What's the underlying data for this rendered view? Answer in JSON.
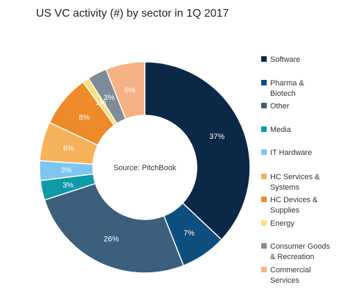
{
  "chart_data": {
    "type": "pie",
    "title": "US VC activity (#) by sector in 1Q 2017",
    "center_label": "Source: PitchBook",
    "slices": [
      {
        "name": "Software",
        "legend_lines": [
          "Software"
        ],
        "value": 37,
        "label": "37%",
        "color": "#0b2847"
      },
      {
        "name": "Pharma & Biotech",
        "legend_lines": [
          "Pharma &",
          "Biotech"
        ],
        "value": 7,
        "label": "7%",
        "color": "#0d4e7e"
      },
      {
        "name": "Other",
        "legend_lines": [
          "Other"
        ],
        "value": 26,
        "label": "26%",
        "color": "#3b5f7d"
      },
      {
        "name": "Media",
        "legend_lines": [
          "Media"
        ],
        "value": 3,
        "label": "3%",
        "color": "#0f9aa8"
      },
      {
        "name": "IT Hardware",
        "legend_lines": [
          "IT Hardware"
        ],
        "value": 3,
        "label": "3%",
        "color": "#7cc6f0"
      },
      {
        "name": "HC Services & Systems",
        "legend_lines": [
          "HC Services &",
          "Systems"
        ],
        "value": 6,
        "label": "6%",
        "color": "#f6b25a"
      },
      {
        "name": "HC Devices & Supplies",
        "legend_lines": [
          "HC Devices &",
          "Supplies"
        ],
        "value": 8,
        "label": "8%",
        "color": "#ef8a2a"
      },
      {
        "name": "Energy",
        "legend_lines": [
          "Energy"
        ],
        "value": 1,
        "label": "1%",
        "color": "#fce07a"
      },
      {
        "name": "Consumer Goods & Recreation",
        "legend_lines": [
          "Consumer Goods",
          "& Recreation"
        ],
        "value": 3,
        "label": "3%",
        "color": "#7f8c98"
      },
      {
        "name": "Commercial Services",
        "legend_lines": [
          "Commercial",
          "Services"
        ],
        "value": 6,
        "label": "6%",
        "color": "#f5b183"
      }
    ],
    "label_color": "#ffffff",
    "legend_placement": "right"
  }
}
